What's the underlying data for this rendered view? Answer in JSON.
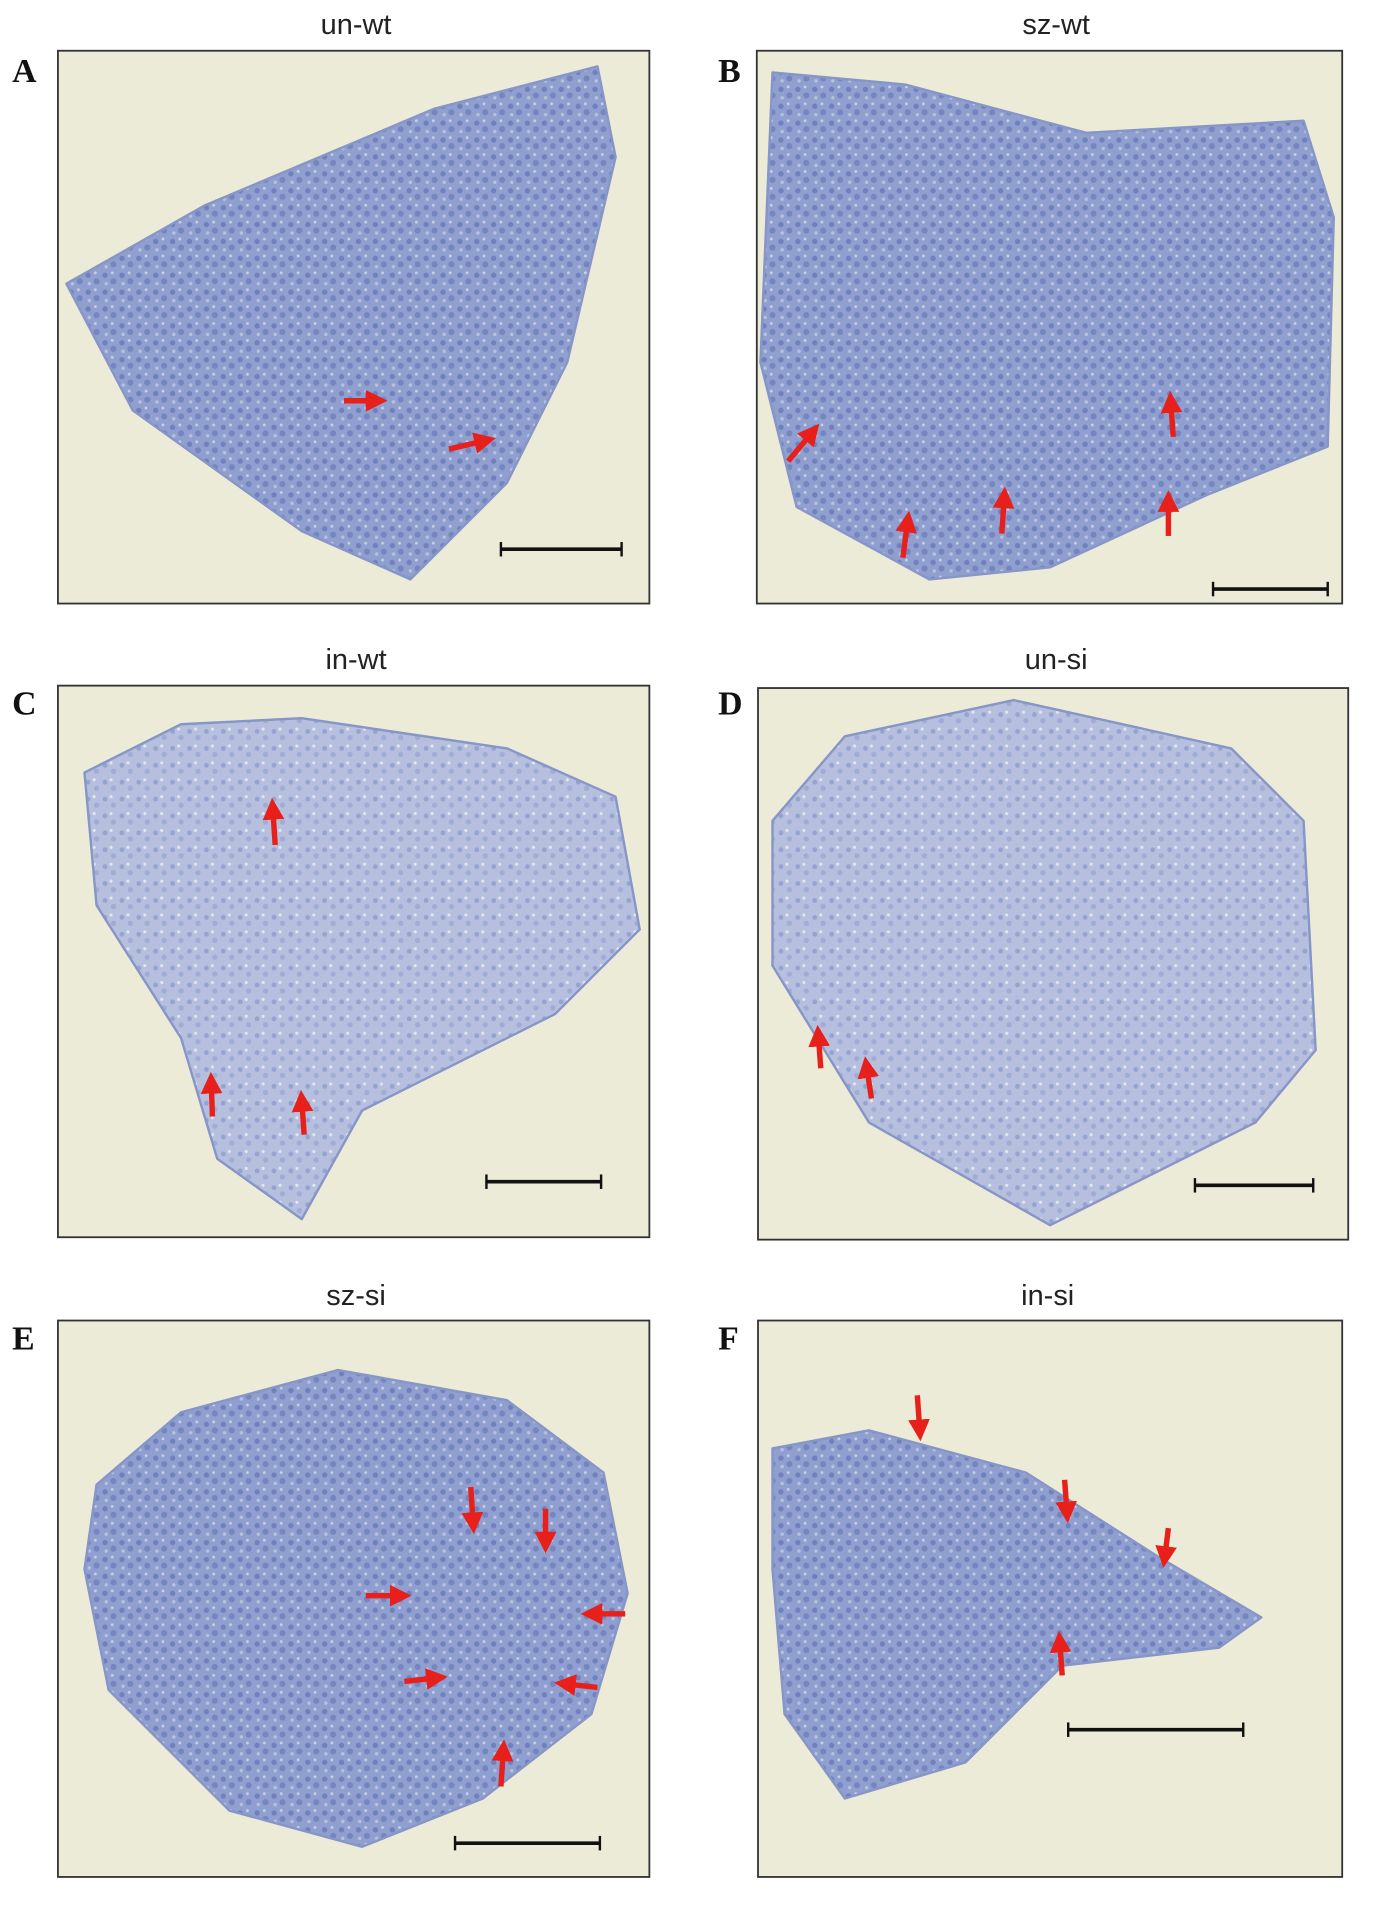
{
  "panels": [
    {
      "letter": "A",
      "title": "un-wt"
    },
    {
      "letter": "B",
      "title": "sz-wt"
    },
    {
      "letter": "C",
      "title": "in-wt"
    },
    {
      "letter": "D",
      "title": "un-si"
    },
    {
      "letter": "E",
      "title": "sz-si"
    },
    {
      "letter": "F",
      "title": "in-si"
    }
  ]
}
